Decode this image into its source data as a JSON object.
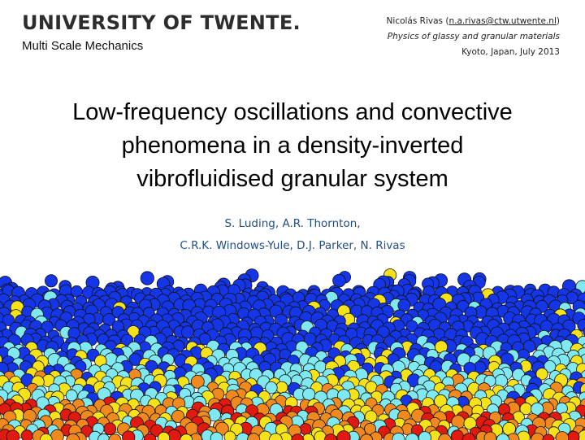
{
  "logo": {
    "main": "UNIVERSITY OF TWENTE.",
    "sub": "Multi Scale Mechanics"
  },
  "header": {
    "author_name": "Nicolás Rivas (",
    "author_email": "n.a.rivas@ctw.utwente.nl",
    "author_close": ")",
    "subtitle": "Physics of glassy and granular materials",
    "location": "Kyoto, Japan, July 2013"
  },
  "title": {
    "line1": "Low-frequency oscillations and convective",
    "line2": "phenomena in a density-inverted",
    "line3": "vibrofluidised granular system"
  },
  "authors": {
    "line1": "S. Luding, A.R. Thornton,",
    "line2": "C.R.K. Windows-Yule, D.J. Parker, N. Rivas"
  },
  "colors": {
    "author_text": "#1f4e8a",
    "particle_blue": "#1436e6",
    "particle_cyan": "#7fe8f0",
    "particle_yellow": "#f5e21a",
    "particle_orange": "#f08a1e",
    "particle_red": "#e01a10"
  }
}
